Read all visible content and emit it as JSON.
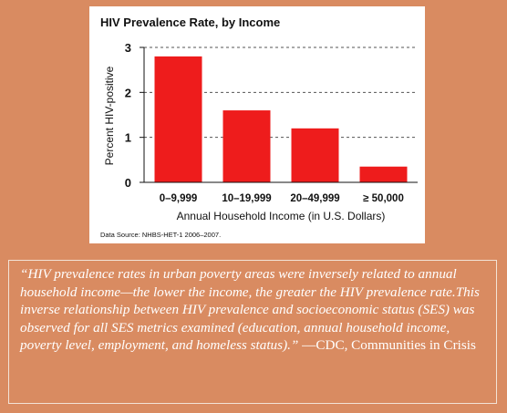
{
  "colors": {
    "background": "#d98b61",
    "bar": "#ee1c1c",
    "grid": "#555555"
  },
  "chart_data": {
    "type": "bar",
    "title": "HIV Prevalence Rate, by Income",
    "xlabel": "Annual Household Income (in U.S. Dollars)",
    "ylabel": "Percent HIV-positive",
    "ylim": [
      0,
      3
    ],
    "yticks": [
      "0",
      "1",
      "2",
      "3"
    ],
    "grid": true,
    "categories": [
      "0–9,999",
      "10–19,999",
      "20–49,999",
      "≥ 50,000"
    ],
    "values": [
      2.8,
      1.6,
      1.2,
      0.35
    ],
    "source": "Data Source: NHBS-HET-1 2006–2007."
  },
  "quote": {
    "body": "“HIV prevalence rates in urban poverty areas were inversely related to annual household income—the lower the income, the greater the HIV prevalence rate.This inverse relationship between HIV prevalence and socioeconomic status (SES) was observed for all SES metrics examined (education, annual household income, poverty level, employment, and homeless status).”",
    "attribution": " —CDC, Communities in Crisis"
  }
}
